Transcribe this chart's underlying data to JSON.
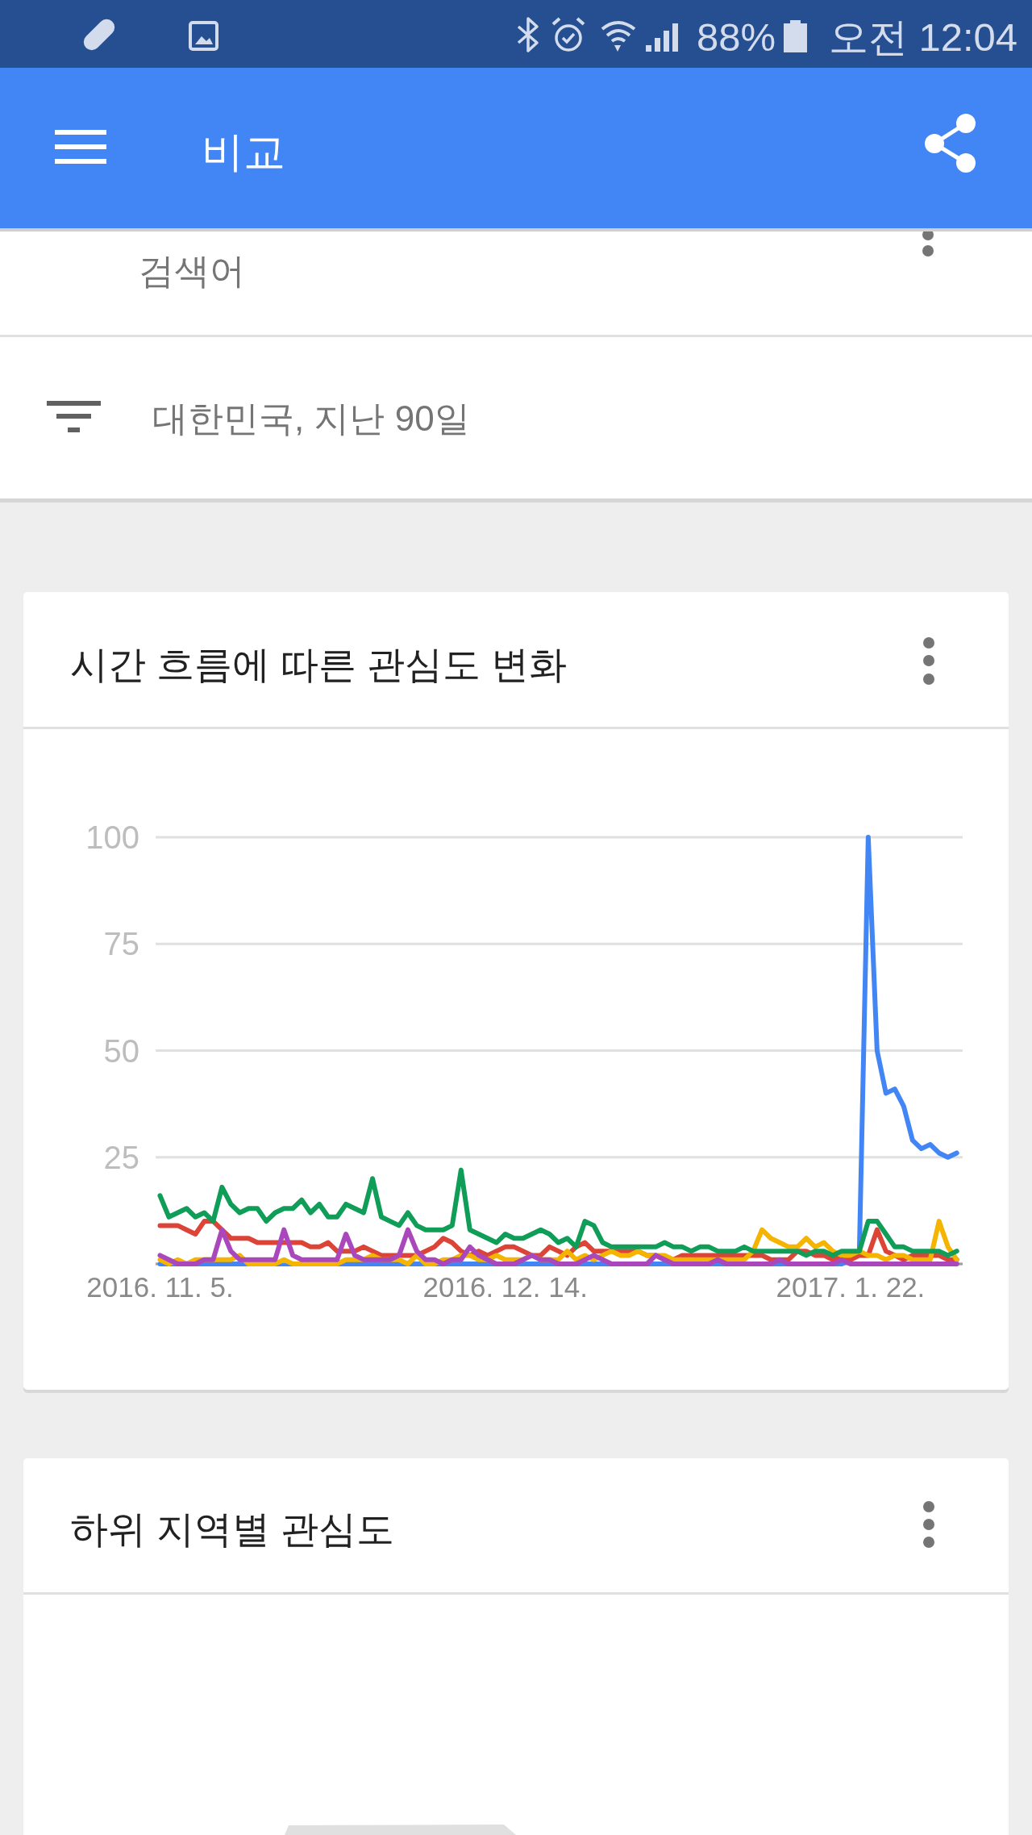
{
  "chart_data": {
    "type": "line",
    "title": "시간 흐름에 따른 관심도 변화",
    "annotations": [
      "비교",
      "검색어",
      "대한민국, 지난 90일",
      "하위 지역별 관심도",
      "88%",
      "오전 12:04"
    ],
    "x": [
      "2016-11-05",
      "2016-11-06",
      "2016-11-07",
      "2016-11-08",
      "2016-11-09",
      "2016-11-10",
      "2016-11-11",
      "2016-11-12",
      "2016-11-13",
      "2016-11-14",
      "2016-11-15",
      "2016-11-16",
      "2016-11-17",
      "2016-11-18",
      "2016-11-19",
      "2016-11-20",
      "2016-11-21",
      "2016-11-22",
      "2016-11-23",
      "2016-11-24",
      "2016-11-25",
      "2016-11-26",
      "2016-11-27",
      "2016-11-28",
      "2016-11-29",
      "2016-11-30",
      "2016-12-01",
      "2016-12-02",
      "2016-12-03",
      "2016-12-04",
      "2016-12-05",
      "2016-12-06",
      "2016-12-07",
      "2016-12-08",
      "2016-12-09",
      "2016-12-10",
      "2016-12-11",
      "2016-12-12",
      "2016-12-13",
      "2016-12-14",
      "2016-12-15",
      "2016-12-16",
      "2016-12-17",
      "2016-12-18",
      "2016-12-19",
      "2016-12-20",
      "2016-12-21",
      "2016-12-22",
      "2016-12-23",
      "2016-12-24",
      "2016-12-25",
      "2016-12-26",
      "2016-12-27",
      "2016-12-28",
      "2016-12-29",
      "2016-12-30",
      "2016-12-31",
      "2017-01-01",
      "2017-01-02",
      "2017-01-03",
      "2017-01-04",
      "2017-01-05",
      "2017-01-06",
      "2017-01-07",
      "2017-01-08",
      "2017-01-09",
      "2017-01-10",
      "2017-01-11",
      "2017-01-12",
      "2017-01-13",
      "2017-01-14",
      "2017-01-15",
      "2017-01-16",
      "2017-01-17",
      "2017-01-18",
      "2017-01-19",
      "2017-01-20",
      "2017-01-21",
      "2017-01-22",
      "2017-01-23",
      "2017-01-24",
      "2017-01-25",
      "2017-01-26",
      "2017-01-27",
      "2017-01-28",
      "2017-01-29",
      "2017-01-30",
      "2017-01-31",
      "2017-02-01",
      "2017-02-02",
      "2017-02-03"
    ],
    "series": [
      {
        "color": "#4285f4",
        "values": [
          0,
          0,
          0,
          0,
          0,
          0,
          0,
          0,
          0,
          0,
          0,
          0,
          0,
          0,
          0,
          0,
          0,
          0,
          0,
          0,
          0,
          0,
          0,
          0,
          0,
          0,
          0,
          0,
          0,
          0,
          0,
          0,
          0,
          0,
          0,
          0,
          0,
          0,
          0,
          0,
          0,
          0,
          0,
          0,
          0,
          0,
          0,
          0,
          0,
          0,
          0,
          0,
          0,
          0,
          0,
          0,
          0,
          0,
          0,
          0,
          0,
          0,
          0,
          0,
          0,
          0,
          0,
          0,
          0,
          0,
          0,
          0,
          0,
          0,
          0,
          0,
          0,
          0,
          1,
          3,
          100,
          50,
          40,
          41,
          37,
          29,
          27,
          28,
          26,
          25,
          26
        ]
      },
      {
        "color": "#db4437",
        "values": [
          9,
          9,
          9,
          8,
          7,
          10,
          10,
          8,
          6,
          6,
          6,
          5,
          5,
          5,
          5,
          5,
          5,
          4,
          4,
          5,
          3,
          3,
          3,
          4,
          3,
          2,
          2,
          2,
          2,
          2,
          3,
          4,
          6,
          5,
          3,
          2,
          3,
          2,
          3,
          4,
          4,
          3,
          2,
          2,
          4,
          3,
          2,
          4,
          5,
          3,
          3,
          3,
          3,
          3,
          3,
          2,
          2,
          1,
          1,
          2,
          2,
          2,
          2,
          2,
          2,
          2,
          2,
          2,
          2,
          1,
          1,
          1,
          3,
          3,
          2,
          2,
          1,
          2,
          1,
          2,
          2,
          8,
          3,
          2,
          1,
          2,
          2,
          2,
          2,
          1,
          1
        ]
      },
      {
        "color": "#f4b400",
        "values": [
          1,
          0,
          1,
          0,
          1,
          1,
          1,
          1,
          1,
          2,
          0,
          0,
          0,
          0,
          1,
          0,
          0,
          0,
          0,
          0,
          0,
          1,
          1,
          1,
          2,
          1,
          1,
          1,
          0,
          2,
          0,
          0,
          1,
          1,
          2,
          2,
          1,
          1,
          2,
          1,
          1,
          1,
          2,
          1,
          1,
          1,
          3,
          1,
          2,
          1,
          2,
          3,
          2,
          2,
          3,
          2,
          2,
          2,
          1,
          1,
          1,
          1,
          1,
          1,
          1,
          1,
          1,
          3,
          8,
          6,
          5,
          4,
          4,
          6,
          4,
          5,
          3,
          2,
          2,
          3,
          2,
          2,
          1,
          2,
          2,
          1,
          1,
          1,
          10,
          4,
          1
        ]
      },
      {
        "color": "#0f9d58",
        "values": [
          16,
          11,
          12,
          13,
          11,
          12,
          10,
          18,
          14,
          12,
          13,
          13,
          10,
          12,
          13,
          13,
          15,
          12,
          14,
          11,
          11,
          14,
          13,
          12,
          20,
          11,
          10,
          9,
          12,
          9,
          8,
          8,
          8,
          9,
          22,
          8,
          7,
          6,
          5,
          7,
          6,
          6,
          7,
          8,
          7,
          5,
          6,
          4,
          10,
          9,
          5,
          4,
          4,
          4,
          4,
          4,
          4,
          5,
          4,
          4,
          3,
          4,
          4,
          3,
          3,
          3,
          4,
          3,
          3,
          3,
          3,
          3,
          3,
          2,
          3,
          3,
          2,
          3,
          3,
          3,
          10,
          10,
          7,
          4,
          4,
          3,
          3,
          3,
          3,
          2,
          3
        ]
      },
      {
        "color": "#ab47bc",
        "values": [
          2,
          1,
          0,
          0,
          0,
          1,
          1,
          8,
          3,
          1,
          1,
          1,
          1,
          1,
          8,
          2,
          1,
          1,
          1,
          1,
          1,
          7,
          2,
          1,
          1,
          1,
          1,
          2,
          8,
          3,
          1,
          1,
          0,
          1,
          1,
          4,
          2,
          1,
          0,
          0,
          0,
          1,
          2,
          1,
          1,
          0,
          0,
          0,
          1,
          2,
          1,
          0,
          0,
          0,
          0,
          0,
          2,
          1,
          0,
          0,
          0,
          0,
          0,
          1,
          0,
          0,
          0,
          0,
          0,
          0,
          1,
          0,
          0,
          0,
          0,
          0,
          0,
          1,
          0,
          0,
          0,
          0,
          0,
          0,
          0,
          0,
          0,
          0,
          0,
          0,
          0
        ]
      }
    ],
    "xlim": [
      "2016-11-04T12:00",
      "2017-02-03T16:00"
    ],
    "xticks": [
      {
        "value": "2016-11-05",
        "label": "2016. 11. 5."
      },
      {
        "value": "2016-12-14",
        "label": "2016. 12. 14."
      },
      {
        "value": "2017-01-22",
        "label": "2017. 1. 22."
      }
    ],
    "ylim": [
      0,
      100
    ],
    "yticks": [
      {
        "value": 0,
        "label": null
      },
      25,
      50,
      75,
      100
    ],
    "grid": "y"
  }
}
